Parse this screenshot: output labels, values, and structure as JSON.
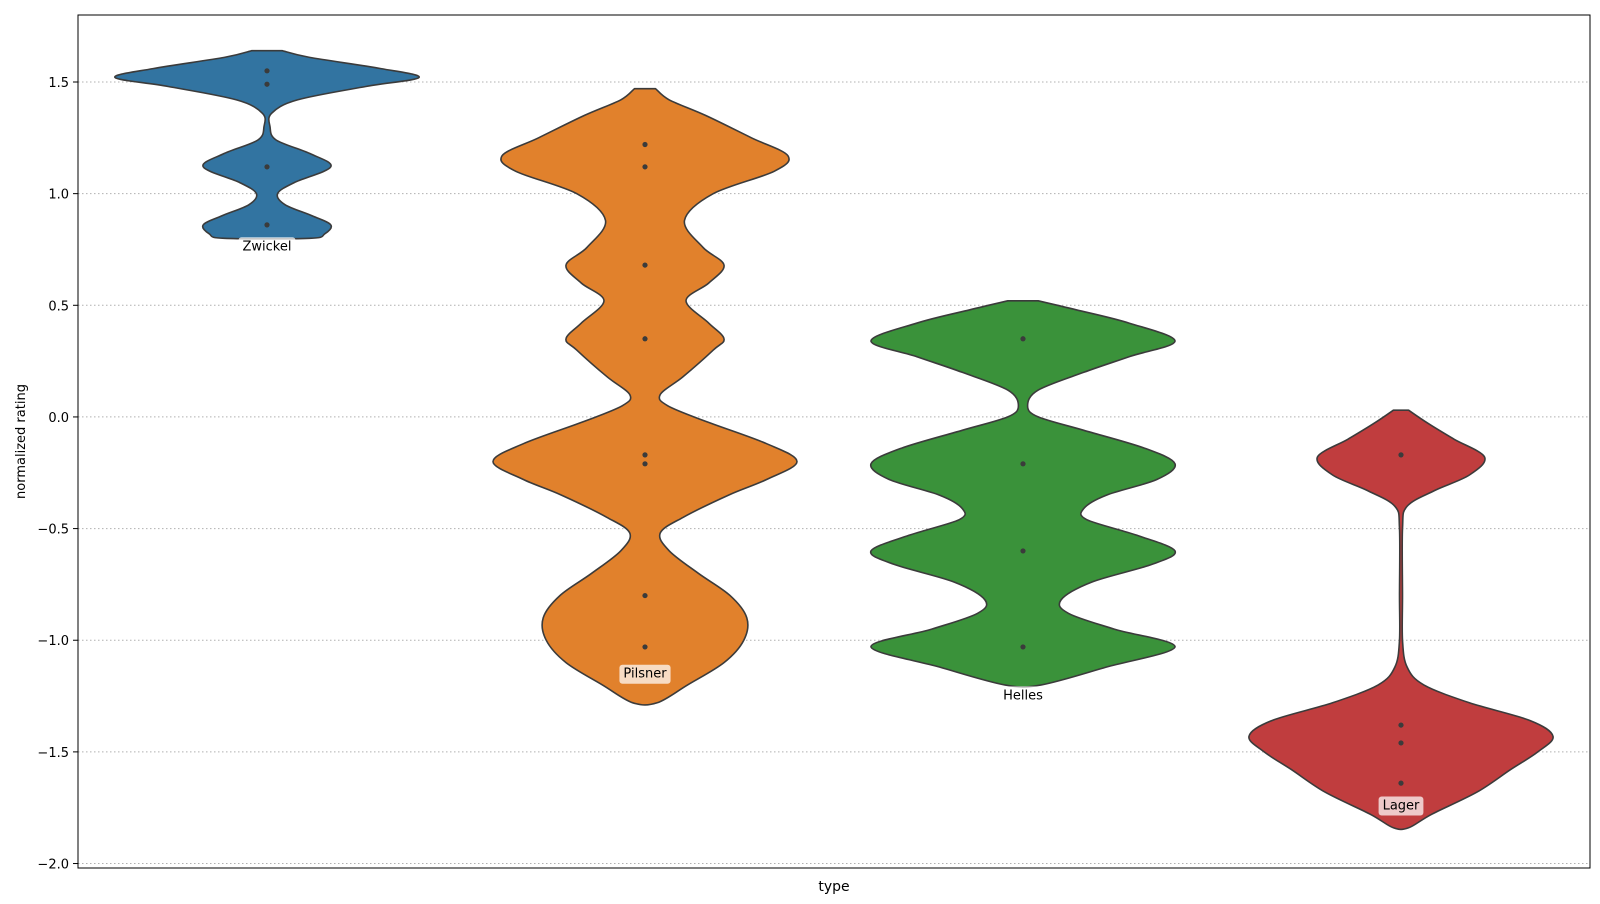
{
  "chart_data": {
    "type": "violin",
    "xlabel": "type",
    "ylabel": "normalized rating",
    "ylim": [
      -2.0,
      1.8
    ],
    "yticks": [
      1.5,
      1.0,
      0.5,
      0.0,
      -0.5,
      -1.0,
      -1.5,
      -2.0
    ],
    "ytick_labels": [
      "1.5",
      "1.0",
      "0.5",
      "0.0",
      "−0.5",
      "−1.0",
      "−1.5",
      "−2.0"
    ],
    "grid": "y-dotted",
    "violin_labels": "boxed text under each violin",
    "series": [
      {
        "name": "Zwickel",
        "color": "#3274a1",
        "points": [
          1.55,
          1.49,
          1.12,
          0.86
        ],
        "range": [
          0.8,
          1.64
        ],
        "density": [
          [
            0.8,
            0.28
          ],
          [
            0.82,
            0.38
          ],
          [
            0.86,
            0.42
          ],
          [
            0.9,
            0.3
          ],
          [
            0.95,
            0.12
          ],
          [
            1.0,
            0.07
          ],
          [
            1.05,
            0.18
          ],
          [
            1.12,
            0.42
          ],
          [
            1.18,
            0.28
          ],
          [
            1.24,
            0.06
          ],
          [
            1.3,
            0.02
          ],
          [
            1.36,
            0.03
          ],
          [
            1.42,
            0.2
          ],
          [
            1.48,
            0.65
          ],
          [
            1.52,
            1.0
          ],
          [
            1.56,
            0.75
          ],
          [
            1.61,
            0.28
          ],
          [
            1.64,
            0.1
          ]
        ]
      },
      {
        "name": "Pilsner",
        "color": "#e1812c",
        "points": [
          1.22,
          1.12,
          0.68,
          0.35,
          -0.17,
          -0.21,
          -0.8,
          -1.03
        ],
        "range": [
          -1.28,
          1.47
        ],
        "density": [
          [
            -1.28,
            0.08
          ],
          [
            -1.2,
            0.28
          ],
          [
            -1.1,
            0.52
          ],
          [
            -1.0,
            0.65
          ],
          [
            -0.9,
            0.67
          ],
          [
            -0.8,
            0.56
          ],
          [
            -0.7,
            0.35
          ],
          [
            -0.6,
            0.16
          ],
          [
            -0.52,
            0.1
          ],
          [
            -0.45,
            0.25
          ],
          [
            -0.35,
            0.55
          ],
          [
            -0.28,
            0.8
          ],
          [
            -0.2,
            1.0
          ],
          [
            -0.12,
            0.8
          ],
          [
            -0.02,
            0.4
          ],
          [
            0.05,
            0.15
          ],
          [
            0.1,
            0.1
          ],
          [
            0.18,
            0.25
          ],
          [
            0.3,
            0.45
          ],
          [
            0.35,
            0.52
          ],
          [
            0.42,
            0.42
          ],
          [
            0.52,
            0.27
          ],
          [
            0.6,
            0.42
          ],
          [
            0.68,
            0.52
          ],
          [
            0.76,
            0.38
          ],
          [
            0.88,
            0.26
          ],
          [
            1.0,
            0.45
          ],
          [
            1.1,
            0.85
          ],
          [
            1.17,
            0.94
          ],
          [
            1.25,
            0.7
          ],
          [
            1.35,
            0.4
          ],
          [
            1.42,
            0.16
          ],
          [
            1.47,
            0.07
          ]
        ]
      },
      {
        "name": "Helles",
        "color": "#3a923a",
        "points": [
          0.35,
          -0.21,
          -0.6,
          -1.03
        ],
        "range": [
          -1.2,
          0.52
        ],
        "density": [
          [
            -1.2,
            0.12
          ],
          [
            -1.12,
            0.55
          ],
          [
            -1.03,
            1.0
          ],
          [
            -0.95,
            0.6
          ],
          [
            -0.88,
            0.3
          ],
          [
            -0.82,
            0.25
          ],
          [
            -0.74,
            0.45
          ],
          [
            -0.66,
            0.85
          ],
          [
            -0.6,
            1.0
          ],
          [
            -0.53,
            0.75
          ],
          [
            -0.46,
            0.42
          ],
          [
            -0.41,
            0.4
          ],
          [
            -0.35,
            0.55
          ],
          [
            -0.28,
            0.88
          ],
          [
            -0.21,
            1.0
          ],
          [
            -0.14,
            0.8
          ],
          [
            -0.06,
            0.4
          ],
          [
            0.0,
            0.1
          ],
          [
            0.05,
            0.03
          ],
          [
            0.12,
            0.1
          ],
          [
            0.2,
            0.4
          ],
          [
            0.27,
            0.7
          ],
          [
            0.34,
            1.0
          ],
          [
            0.42,
            0.7
          ],
          [
            0.48,
            0.35
          ],
          [
            0.52,
            0.1
          ]
        ]
      },
      {
        "name": "Lager",
        "color": "#c03d3e",
        "points": [
          -0.17,
          -1.38,
          -1.46,
          -1.64
        ],
        "range": [
          -1.84,
          0.03
        ],
        "density": [
          [
            -1.84,
            0.05
          ],
          [
            -1.78,
            0.2
          ],
          [
            -1.68,
            0.5
          ],
          [
            -1.58,
            0.72
          ],
          [
            -1.5,
            0.9
          ],
          [
            -1.43,
            1.0
          ],
          [
            -1.36,
            0.85
          ],
          [
            -1.28,
            0.45
          ],
          [
            -1.2,
            0.15
          ],
          [
            -1.12,
            0.04
          ],
          [
            -1.0,
            0.01
          ],
          [
            -0.8,
            0.01
          ],
          [
            -0.5,
            0.01
          ],
          [
            -0.4,
            0.04
          ],
          [
            -0.33,
            0.22
          ],
          [
            -0.26,
            0.45
          ],
          [
            -0.18,
            0.55
          ],
          [
            -0.1,
            0.35
          ],
          [
            -0.03,
            0.18
          ],
          [
            0.03,
            0.05
          ]
        ]
      }
    ]
  }
}
